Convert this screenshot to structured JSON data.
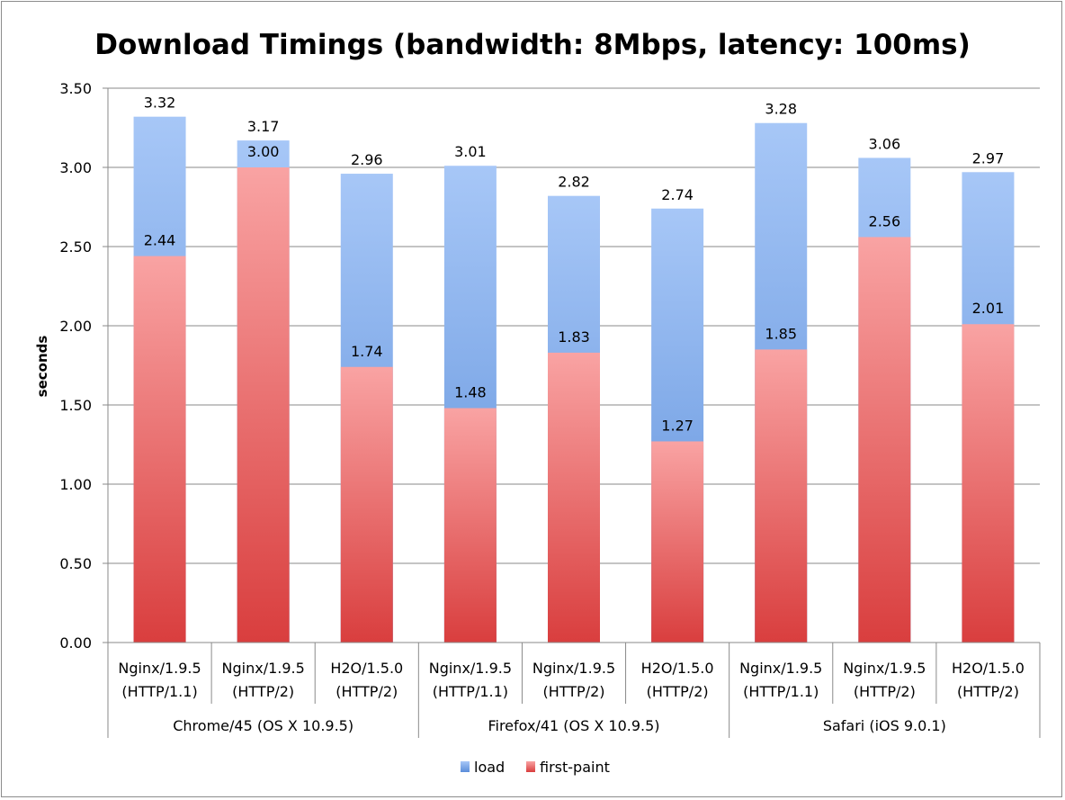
{
  "chart_data": {
    "type": "bar",
    "stacked": false,
    "overlaid": true,
    "title": "Download Timings (bandwidth: 8Mbps, latency: 100ms)",
    "xlabel": "",
    "ylabel": "seconds",
    "ylim": [
      0,
      3.5
    ],
    "yticks": [
      "0.00",
      "0.50",
      "1.00",
      "1.50",
      "2.00",
      "2.50",
      "3.00",
      "3.50"
    ],
    "grid": true,
    "legend_position": "bottom",
    "groups": [
      {
        "label": "Chrome/45 (OS X 10.9.5)",
        "count": 3
      },
      {
        "label": "Firefox/41 (OS X 10.9.5)",
        "count": 3
      },
      {
        "label": "Safari (iOS 9.0.1)",
        "count": 3
      }
    ],
    "categories": [
      [
        "Nginx/1.9.5",
        "(HTTP/1.1)"
      ],
      [
        "Nginx/1.9.5",
        "(HTTP/2)"
      ],
      [
        "H2O/1.5.0",
        "(HTTP/2)"
      ],
      [
        "Nginx/1.9.5",
        "(HTTP/1.1)"
      ],
      [
        "Nginx/1.9.5",
        "(HTTP/2)"
      ],
      [
        "H2O/1.5.0",
        "(HTTP/2)"
      ],
      [
        "Nginx/1.9.5",
        "(HTTP/1.1)"
      ],
      [
        "Nginx/1.9.5",
        "(HTTP/2)"
      ],
      [
        "H2O/1.5.0",
        "(HTTP/2)"
      ]
    ],
    "series": [
      {
        "name": "load",
        "color": "#6f9fe6",
        "values": [
          3.32,
          3.17,
          2.96,
          3.01,
          2.82,
          2.74,
          3.28,
          3.06,
          2.97
        ],
        "labels": [
          "3.32",
          "3.17",
          "2.96",
          "3.01",
          "2.82",
          "2.74",
          "3.28",
          "3.06",
          "2.97"
        ]
      },
      {
        "name": "first-paint",
        "color": "#e45555",
        "values": [
          2.44,
          3.0,
          1.74,
          1.48,
          1.83,
          1.27,
          1.85,
          2.56,
          2.01
        ],
        "labels": [
          "2.44",
          "3.00",
          "1.74",
          "1.48",
          "1.83",
          "1.27",
          "1.85",
          "2.56",
          "2.01"
        ]
      }
    ]
  }
}
